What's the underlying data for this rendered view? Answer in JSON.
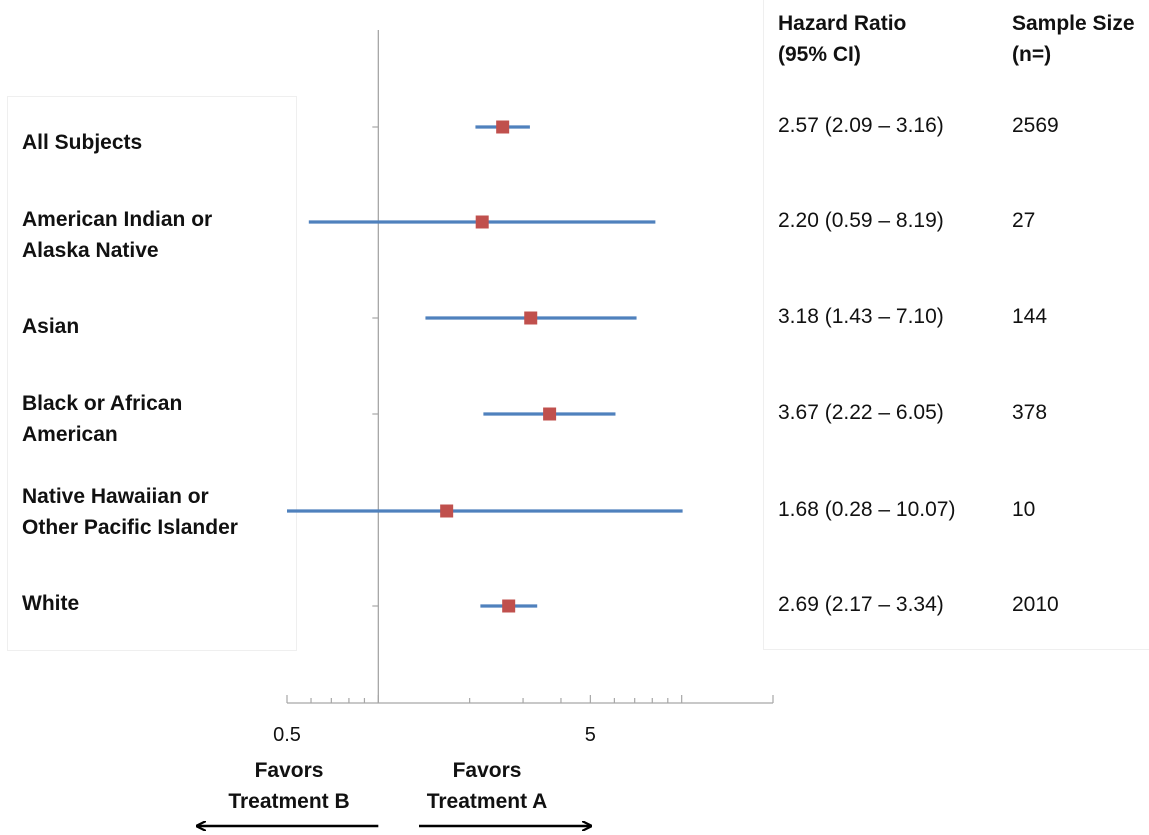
{
  "chart_data": {
    "type": "forest",
    "scale": "log",
    "xlim": [
      0.5,
      20
    ],
    "reference_line": 1,
    "tick_labels": [
      "0.5",
      "5"
    ],
    "rows": [
      {
        "label": [
          "All Subjects"
        ],
        "hr": 2.57,
        "lo": 2.09,
        "hi": 3.16,
        "hr_text": "2.57 (2.09 – 3.16)",
        "n_text": "2569"
      },
      {
        "label": [
          "American Indian or",
          "Alaska Native"
        ],
        "hr": 2.2,
        "lo": 0.59,
        "hi": 8.19,
        "hr_text": "2.20 (0.59 – 8.19)",
        "n_text": "27"
      },
      {
        "label": [
          "Asian"
        ],
        "hr": 3.18,
        "lo": 1.43,
        "hi": 7.1,
        "hr_text": "3.18 (1.43 – 7.10)",
        "n_text": "144"
      },
      {
        "label": [
          "Black or African",
          "American"
        ],
        "hr": 3.67,
        "lo": 2.22,
        "hi": 6.05,
        "hr_text": "3.67 (2.22 – 6.05)",
        "n_text": "378"
      },
      {
        "label": [
          "Native Hawaiian or",
          "Other Pacific Islander"
        ],
        "hr": 1.68,
        "lo": 0.28,
        "hi": 10.07,
        "hr_text": "1.68 (0.28 – 10.07)",
        "n_text": "10"
      },
      {
        "label": [
          "White"
        ],
        "hr": 2.69,
        "lo": 2.17,
        "hi": 3.34,
        "hr_text": "2.69 (2.17 – 3.34)",
        "n_text": "2010"
      }
    ],
    "headers": {
      "hr": [
        "Hazard Ratio",
        "(95% CI)"
      ],
      "n": [
        "Sample Size",
        "(n=)"
      ]
    },
    "favors_left": [
      "Favors",
      "Treatment B"
    ],
    "favors_right": [
      "Favors",
      "Treatment A"
    ],
    "colors": {
      "ci_line": "#4f81bd",
      "point": "#c0504d",
      "axis": "#a6a6a6",
      "arrow": "#000000"
    }
  }
}
